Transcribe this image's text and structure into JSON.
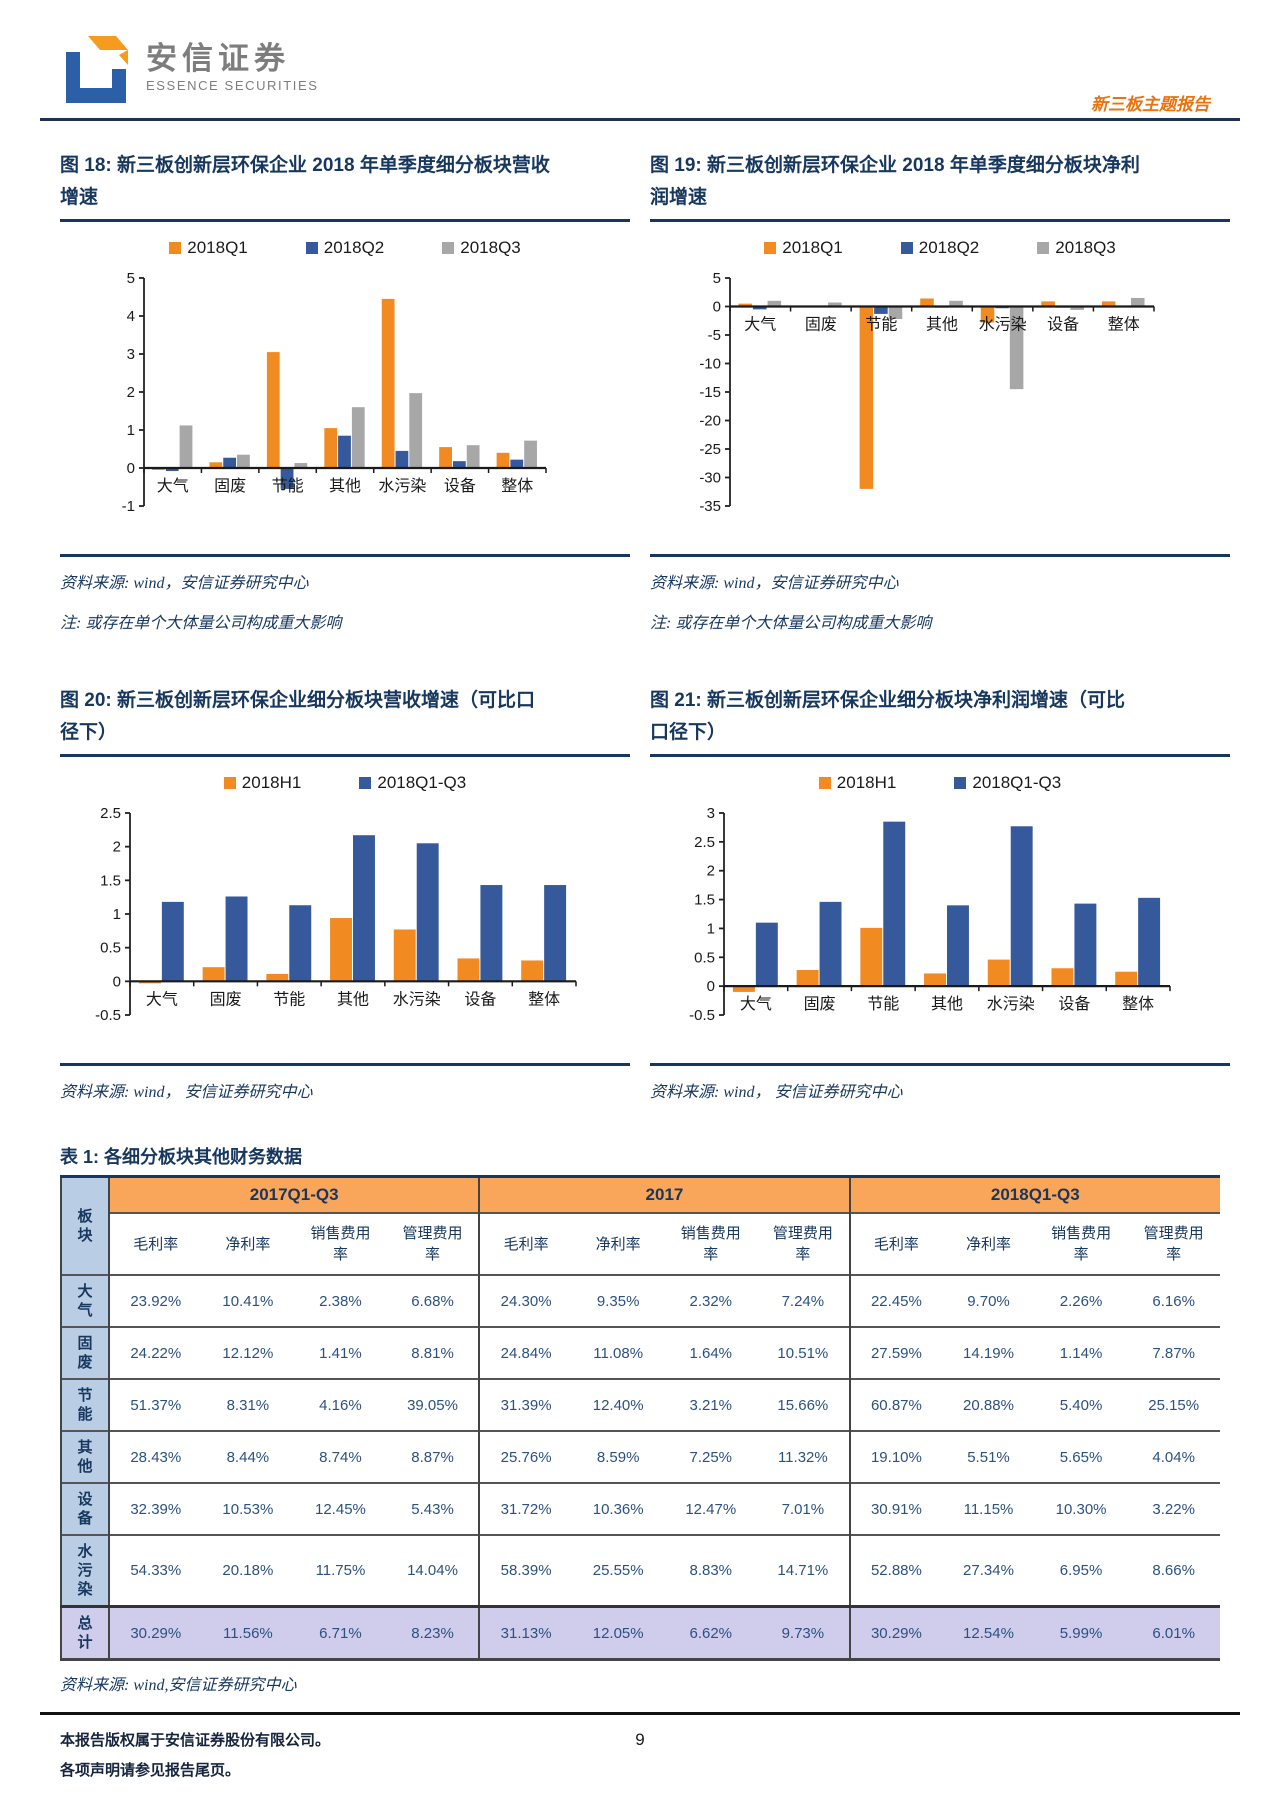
{
  "page": {
    "brand_cn": "安信证券",
    "brand_en": "ESSENCE SECURITIES",
    "report_tag": "新三板主题报告",
    "footer_line1": "本报告版权属于安信证券股份有限公司。",
    "footer_line2": "各项声明请参见报告尾页。",
    "page_number": "9"
  },
  "colors": {
    "accent_navy": "#17375E",
    "tag_orange": "#E87410",
    "bar_orange": "#F28A22",
    "bar_blue": "#35599B",
    "bar_gray": "#A7A7A7",
    "table_header_orange": "#F9A55A",
    "row_label_blue": "#B9CDE5",
    "total_row_purple": "#CFCCEC"
  },
  "figures": [
    {
      "title_line1": "图 18: 新三板创新层环保企业 2018 年单季度细分板块营收",
      "title_line2": "增速",
      "source": "资料来源: wind，安信证券研究中心",
      "note": "注: 或存在单个大体量公司构成重大影响"
    },
    {
      "title_line1": "图 19: 新三板创新层环保企业 2018 年单季度细分板块净利",
      "title_line2": "润增速",
      "source": "资料来源: wind，安信证券研究中心",
      "note": "注: 或存在单个大体量公司构成重大影响"
    },
    {
      "title_line1": "图 20: 新三板创新层环保企业细分板块营收增速（可比口",
      "title_line2": "径下）",
      "source": "资料来源: wind， 安信证券研究中心"
    },
    {
      "title_line1": "图 21: 新三板创新层环保企业细分板块净利润增速（可比",
      "title_line2": "口径下）",
      "source": "资料来源: wind， 安信证券研究中心"
    }
  ],
  "chart_data": [
    {
      "type": "bar",
      "title": "新三板创新层环保企业2018年单季度细分板块营收增速",
      "categories": [
        "大气",
        "固废",
        "节能",
        "其他",
        "水污染",
        "设备",
        "整体"
      ],
      "series": [
        {
          "name": "2018Q1",
          "color": "#F28A22",
          "values": [
            -0.05,
            0.15,
            3.05,
            1.05,
            4.45,
            0.55,
            0.4
          ]
        },
        {
          "name": "2018Q2",
          "color": "#35599B",
          "values": [
            -0.08,
            0.27,
            -0.55,
            0.85,
            0.45,
            0.18,
            0.22
          ]
        },
        {
          "name": "2018Q3",
          "color": "#A7A7A7",
          "values": [
            1.12,
            0.35,
            0.13,
            1.6,
            1.97,
            0.6,
            0.72
          ]
        }
      ],
      "ylim": [
        -1,
        5
      ],
      "yticks": [
        5,
        4,
        3,
        2,
        1,
        0,
        -1
      ],
      "grid": false,
      "legend_position": "top"
    },
    {
      "type": "bar",
      "title": "新三板创新层环保企业2018年单季度细分板块净利润增速",
      "categories": [
        "大气",
        "固废",
        "节能",
        "其他",
        "水污染",
        "设备",
        "整体"
      ],
      "series": [
        {
          "name": "2018Q1",
          "color": "#F28A22",
          "values": [
            0.5,
            0.1,
            -32.0,
            1.4,
            -2.8,
            0.9,
            0.9
          ]
        },
        {
          "name": "2018Q2",
          "color": "#35599B",
          "values": [
            -0.5,
            -0.1,
            -1.3,
            -0.2,
            -0.3,
            -0.2,
            0.1
          ]
        },
        {
          "name": "2018Q3",
          "color": "#A7A7A7",
          "values": [
            1.0,
            0.7,
            -2.2,
            1.0,
            -14.5,
            -0.6,
            1.5
          ]
        }
      ],
      "ylim": [
        -35,
        5
      ],
      "yticks": [
        5,
        0,
        -5,
        -10,
        -15,
        -20,
        -25,
        -30,
        -35
      ],
      "grid": false,
      "legend_position": "top"
    },
    {
      "type": "bar",
      "title": "新三板创新层环保企业细分板块营收增速（可比口径下）",
      "categories": [
        "大气",
        "固废",
        "节能",
        "其他",
        "水污染",
        "设备",
        "整体"
      ],
      "series": [
        {
          "name": "2018H1",
          "color": "#F28A22",
          "values": [
            -0.03,
            0.21,
            0.11,
            0.94,
            0.77,
            0.34,
            0.31
          ]
        },
        {
          "name": "2018Q1-Q3",
          "color": "#35599B",
          "values": [
            1.18,
            1.26,
            1.13,
            2.17,
            2.05,
            1.43,
            1.43
          ]
        }
      ],
      "ylim": [
        -0.5,
        2.5
      ],
      "yticks": [
        2.5,
        2,
        1.5,
        1,
        0.5,
        0,
        -0.5
      ],
      "grid": false,
      "legend_position": "top"
    },
    {
      "type": "bar",
      "title": "新三板创新层环保企业细分板块净利润增速（可比口径下）",
      "categories": [
        "大气",
        "固废",
        "节能",
        "其他",
        "水污染",
        "设备",
        "整体"
      ],
      "series": [
        {
          "name": "2018H1",
          "color": "#F28A22",
          "values": [
            -0.1,
            0.28,
            1.01,
            0.22,
            0.46,
            0.31,
            0.25
          ]
        },
        {
          "name": "2018Q1-Q3",
          "color": "#35599B",
          "values": [
            1.1,
            1.46,
            2.85,
            1.4,
            2.77,
            1.43,
            1.53
          ]
        }
      ],
      "ylim": [
        -0.5,
        3
      ],
      "yticks": [
        3,
        2.5,
        2,
        1.5,
        1,
        0.5,
        0,
        -0.5
      ],
      "grid": false,
      "legend_position": "top"
    }
  ],
  "table": {
    "title": "表 1: 各细分板块其他财务数据",
    "corner_header": "板块",
    "period_groups": [
      "2017Q1-Q3",
      "2017",
      "2018Q1-Q3"
    ],
    "metrics": [
      "毛利率",
      "净利率",
      "销售费用率",
      "管理费用率"
    ],
    "rows": [
      {
        "label": "大气",
        "values": [
          "23.92%",
          "10.41%",
          "2.38%",
          "6.68%",
          "24.30%",
          "9.35%",
          "2.32%",
          "7.24%",
          "22.45%",
          "9.70%",
          "2.26%",
          "6.16%"
        ]
      },
      {
        "label": "固废",
        "values": [
          "24.22%",
          "12.12%",
          "1.41%",
          "8.81%",
          "24.84%",
          "11.08%",
          "1.64%",
          "10.51%",
          "27.59%",
          "14.19%",
          "1.14%",
          "7.87%"
        ]
      },
      {
        "label": "节能",
        "values": [
          "51.37%",
          "8.31%",
          "4.16%",
          "39.05%",
          "31.39%",
          "12.40%",
          "3.21%",
          "15.66%",
          "60.87%",
          "20.88%",
          "5.40%",
          "25.15%"
        ]
      },
      {
        "label": "其他",
        "values": [
          "28.43%",
          "8.44%",
          "8.74%",
          "8.87%",
          "25.76%",
          "8.59%",
          "7.25%",
          "11.32%",
          "19.10%",
          "5.51%",
          "5.65%",
          "4.04%"
        ]
      },
      {
        "label": "设备",
        "values": [
          "32.39%",
          "10.53%",
          "12.45%",
          "5.43%",
          "31.72%",
          "10.36%",
          "12.47%",
          "7.01%",
          "30.91%",
          "11.15%",
          "10.30%",
          "3.22%"
        ]
      },
      {
        "label": "水污染",
        "values": [
          "54.33%",
          "20.18%",
          "11.75%",
          "14.04%",
          "58.39%",
          "25.55%",
          "8.83%",
          "14.71%",
          "52.88%",
          "27.34%",
          "6.95%",
          "8.66%"
        ]
      },
      {
        "label": "总计",
        "is_total": true,
        "values": [
          "30.29%",
          "11.56%",
          "6.71%",
          "8.23%",
          "31.13%",
          "12.05%",
          "6.62%",
          "9.73%",
          "30.29%",
          "12.54%",
          "5.99%",
          "6.01%"
        ]
      }
    ],
    "source": "资料来源: wind,安信证券研究中心"
  }
}
